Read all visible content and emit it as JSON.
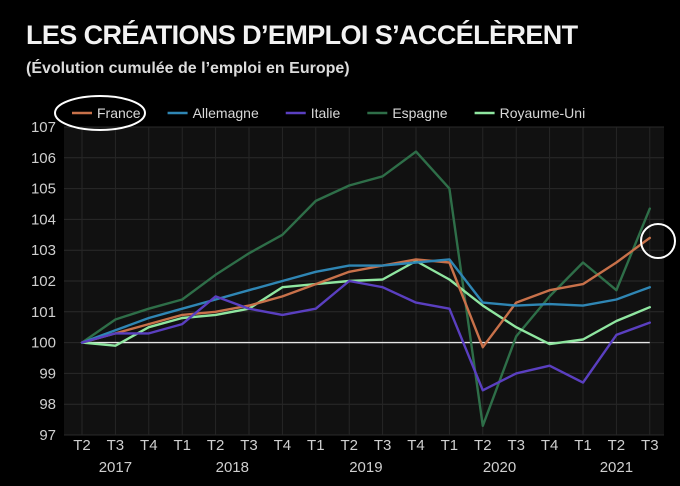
{
  "title": "LES CRÉATIONS D’EMPLOI S’ACCÉLÈRENT",
  "subtitle": "(Évolution cumulée de l’emploi en Europe)",
  "chart_data": {
    "type": "line",
    "categories": [
      "T2",
      "T3",
      "T4",
      "T1",
      "T2",
      "T3",
      "T4",
      "T1",
      "T2",
      "T3",
      "T4",
      "T1",
      "T2",
      "T3",
      "T4",
      "T1",
      "T2",
      "T3"
    ],
    "years": [
      {
        "label": "2017",
        "from": 0,
        "to": 2
      },
      {
        "label": "2018",
        "from": 3,
        "to": 6
      },
      {
        "label": "2019",
        "from": 7,
        "to": 10
      },
      {
        "label": "2020",
        "from": 11,
        "to": 14
      },
      {
        "label": "2021",
        "from": 15,
        "to": 17
      }
    ],
    "ylim": [
      97,
      107
    ],
    "yticks": [
      97,
      98,
      99,
      100,
      101,
      102,
      103,
      104,
      105,
      106,
      107
    ],
    "baseline": 100,
    "series": [
      {
        "name": "France",
        "color": "#c8714a",
        "values": [
          100,
          100.3,
          100.6,
          100.9,
          101.0,
          101.2,
          101.5,
          101.9,
          102.3,
          102.5,
          102.7,
          102.6,
          99.85,
          101.3,
          101.7,
          101.9,
          102.6,
          103.4
        ]
      },
      {
        "name": "Allemagne",
        "color": "#2f86b4",
        "values": [
          100,
          100.4,
          100.8,
          101.1,
          101.4,
          101.7,
          102.0,
          102.3,
          102.5,
          102.5,
          102.6,
          102.7,
          101.3,
          101.2,
          101.25,
          101.2,
          101.4,
          101.8
        ]
      },
      {
        "name": "Italie",
        "color": "#5a3fc0",
        "values": [
          100,
          100.3,
          100.3,
          100.6,
          101.5,
          101.1,
          100.9,
          101.1,
          102.0,
          101.8,
          101.3,
          101.1,
          98.45,
          99.0,
          99.25,
          98.7,
          100.25,
          100.65
        ]
      },
      {
        "name": "Espagne",
        "color": "#2e6e48",
        "values": [
          100,
          100.75,
          101.1,
          101.4,
          102.2,
          102.9,
          103.5,
          104.6,
          105.1,
          105.4,
          106.2,
          105.0,
          97.3,
          100.2,
          101.5,
          102.6,
          101.7,
          104.35
        ]
      },
      {
        "name": "Royaume-Uni",
        "color": "#8fe6a0",
        "values": [
          100,
          99.9,
          100.5,
          100.8,
          100.9,
          101.1,
          101.8,
          101.9,
          102.0,
          102.05,
          102.65,
          102.05,
          101.2,
          100.5,
          99.95,
          100.1,
          100.7,
          101.15
        ]
      }
    ]
  }
}
